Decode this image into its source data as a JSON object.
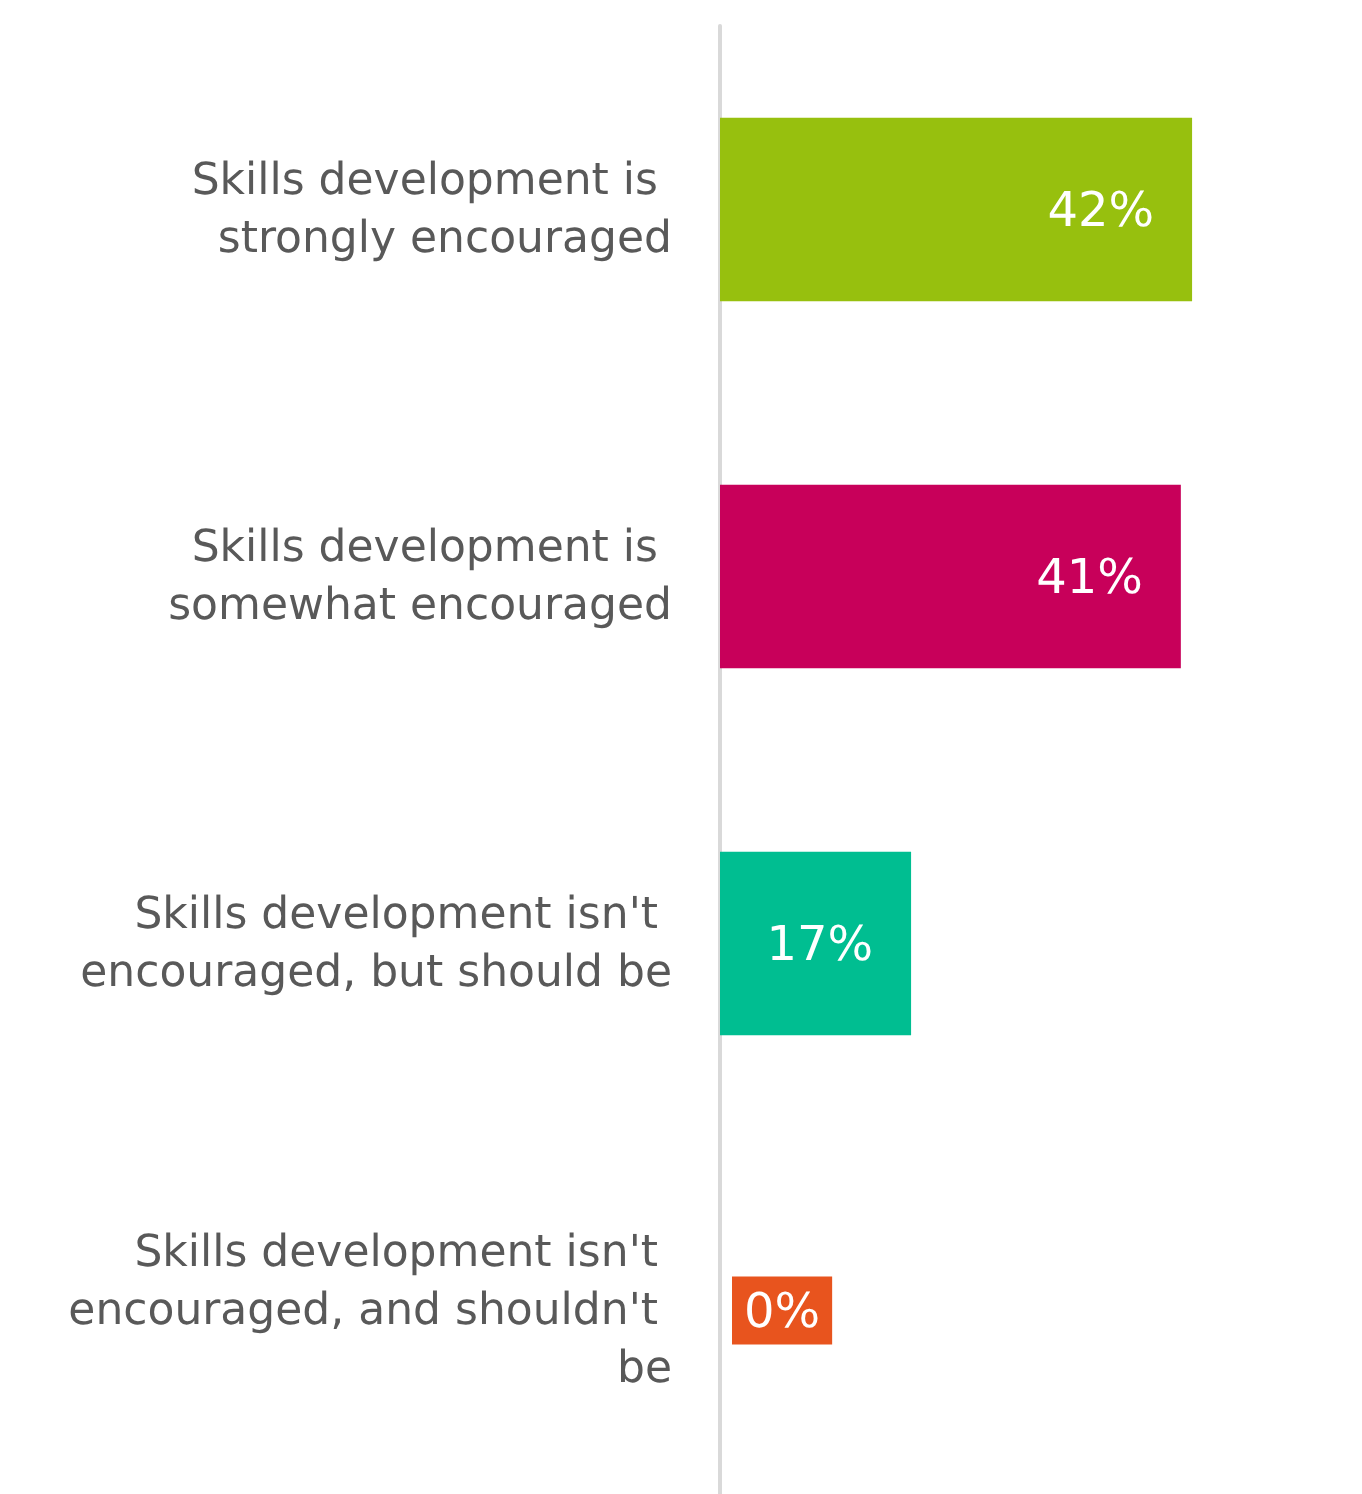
{
  "chart_data": {
    "type": "bar",
    "orientation": "horizontal",
    "categories": [
      "Skills development is strongly encouraged",
      "Skills development is somewhat encouraged",
      "Skills development isn't encouraged, but should be",
      "Skills development isn't encouraged, and shouldn't be"
    ],
    "values": [
      42,
      41,
      17,
      0
    ],
    "colors": [
      "#97c00e",
      "#c8005a",
      "#00be91",
      "#e8541e"
    ],
    "value_labels": [
      "42%",
      "41%",
      "17%",
      "0%"
    ]
  }
}
